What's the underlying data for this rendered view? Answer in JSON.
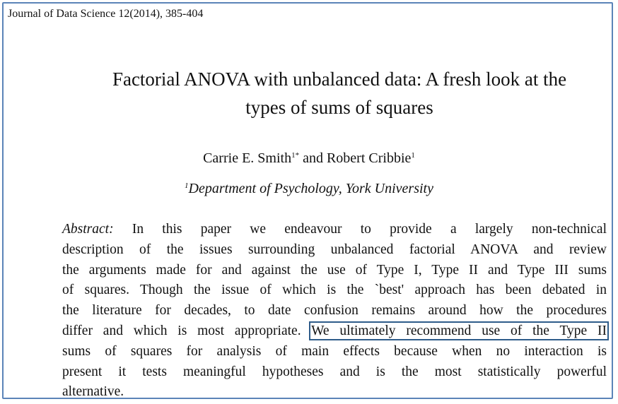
{
  "journal": "Journal of Data Science 12(2014), 385-404",
  "title": {
    "line1": "Factorial ANOVA with unbalanced data: A fresh look at the",
    "line2": "types of sums of squares"
  },
  "authors": {
    "author1": "Carrie E. Smith",
    "author1_sup": "1*",
    "and": " and ",
    "author2": "Robert Cribbie",
    "author2_sup": "1"
  },
  "affiliation": {
    "sup": "1",
    "text": "Department of Psychology, York University"
  },
  "abstract": {
    "label": "Abstract:",
    "l1_rest": " In this paper we endeavour to provide a largely non-technical",
    "l2": "description of the issues surrounding unbalanced factorial ANOVA and review",
    "l3": "the arguments made for and against the use of Type I, Type II and Type III sums",
    "l4": "of squares. Though the issue of which is the `best' approach has been debated in",
    "l5": "the literature for decades, to date confusion remains around how the procedures",
    "l6_pre": "differ and which is most appropriate. ",
    "l6_highlight": "We ultimately recommend use of the Type II",
    "l7": "sums of squares for analysis of main effects because when no interaction is",
    "l8": "present it tests meaningful hypotheses and is the most statistically powerful",
    "l9": "alternative."
  }
}
